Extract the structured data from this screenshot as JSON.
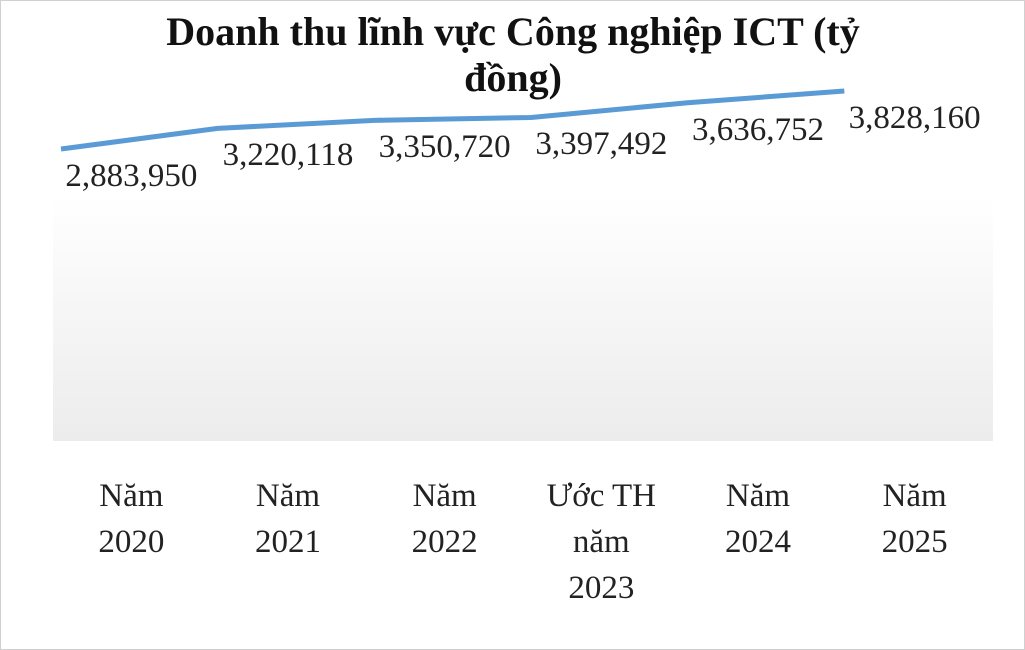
{
  "chart_data": {
    "type": "line",
    "title": "Doanh thu lĩnh vực Công nghiệp ICT (tỷ đồng)",
    "categories": [
      "Năm 2020",
      "Năm 2021",
      "Năm 2022",
      "Ước TH năm 2023",
      "Năm 2024",
      "Năm 2025"
    ],
    "series": [
      {
        "name": "Doanh thu",
        "color": "#5b9bd5",
        "values": [
          2883950,
          3220118,
          3350720,
          3397492,
          3636752,
          3828160
        ],
        "value_labels": [
          "2,883,950",
          "3,220,118",
          "3,350,720",
          "3,397,492",
          "3,636,752",
          "3,828,160"
        ]
      }
    ]
  }
}
